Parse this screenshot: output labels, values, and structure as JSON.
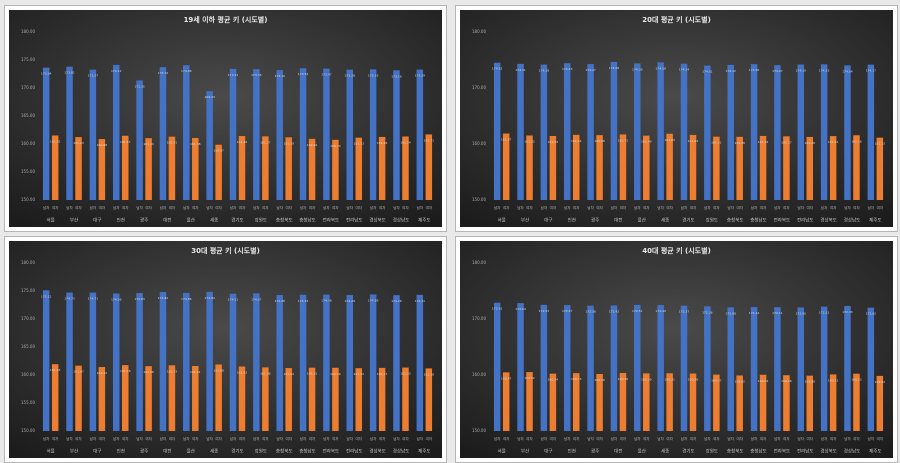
{
  "chart_data": [
    {
      "type": "bar",
      "title": "19세 이하 평균 키 (시도별)",
      "categories": [
        "서울",
        "부산",
        "대구",
        "인천",
        "광주",
        "대전",
        "울산",
        "세종",
        "경기도",
        "강원도",
        "충청북도",
        "충청남도",
        "전라북도",
        "전라남도",
        "경상북도",
        "경상남도",
        "제주도"
      ],
      "series": [
        {
          "name": "남자",
          "color": "#4472c4",
          "values": [
            173.64,
            173.81,
            173.27,
            174.12,
            171.35,
            173.72,
            174.08,
            169.43,
            173.41,
            173.36,
            173.19,
            173.54,
            173.47,
            173.28,
            173.33,
            173.16,
            173.29
          ]
        },
        {
          "name": "여자",
          "color": "#ed7d31",
          "values": [
            161.52,
            161.23,
            160.88,
            161.47,
            161.04,
            161.31,
            161.08,
            159.87,
            161.42,
            161.37,
            161.19,
            160.92,
            160.74,
            161.13,
            161.26,
            161.34,
            161.71
          ]
        }
      ],
      "ylim": [
        150,
        180
      ],
      "yticks": [
        {
          "value": 150,
          "label": "150.00"
        },
        {
          "value": 155,
          "label": "155.00"
        },
        {
          "value": 160,
          "label": "160.00"
        },
        {
          "value": 165,
          "label": "165.00"
        },
        {
          "value": 170,
          "label": "170.00"
        },
        {
          "value": 175,
          "label": "175.00"
        },
        {
          "value": 180,
          "label": "180.00"
        }
      ]
    },
    {
      "type": "bar",
      "title": "20대 평균 키 (시도별)",
      "categories": [
        "서울",
        "부산",
        "대구",
        "인천",
        "광주",
        "대전",
        "울산",
        "세종",
        "경기도",
        "강원도",
        "충청북도",
        "충청남도",
        "전라북도",
        "전라남도",
        "경상북도",
        "경상남도",
        "제주도"
      ],
      "series": [
        {
          "name": "남자",
          "color": "#4472c4",
          "values": [
            174.52,
            174.31,
            174.18,
            174.43,
            174.27,
            174.66,
            174.39,
            174.58,
            174.34,
            174.01,
            174.12,
            174.26,
            174.07,
            174.19,
            174.23,
            174.04,
            174.17
          ]
        },
        {
          "name": "여자",
          "color": "#ed7d31",
          "values": [
            161.87,
            161.52,
            161.43,
            161.64,
            161.58,
            161.71,
            161.49,
            161.83,
            161.62,
            161.31,
            161.28,
            161.44,
            161.37,
            161.26,
            161.41,
            161.56,
            161.13
          ]
        }
      ],
      "ylim": [
        150,
        180
      ],
      "yticks": [
        {
          "value": 150,
          "label": "150.00"
        },
        {
          "value": 160,
          "label": "160.00"
        },
        {
          "value": 170,
          "label": "170.00"
        },
        {
          "value": 180,
          "label": "180.00"
        }
      ]
    },
    {
      "type": "bar",
      "title": "30대 평균 키 (시도별)",
      "categories": [
        "서울",
        "부산",
        "대구",
        "인천",
        "광주",
        "대전",
        "울산",
        "세종",
        "경기도",
        "강원도",
        "충청북도",
        "충청남도",
        "전라북도",
        "전라남도",
        "경상북도",
        "경상남도",
        "제주도"
      ],
      "series": [
        {
          "name": "남자",
          "color": "#4472c4",
          "values": [
            175.12,
            174.73,
            174.71,
            174.56,
            174.63,
            174.82,
            174.66,
            174.84,
            174.51,
            174.57,
            174.28,
            174.33,
            174.36,
            174.29,
            174.38,
            174.26,
            174.31
          ]
        },
        {
          "name": "여자",
          "color": "#ed7d31",
          "values": [
            161.93,
            161.67,
            161.42,
            161.76,
            161.58,
            161.73,
            161.61,
            161.88,
            161.52,
            161.36,
            161.24,
            161.31,
            161.29,
            161.22,
            161.27,
            161.33,
            161.18
          ]
        }
      ],
      "ylim": [
        150,
        180
      ],
      "yticks": [
        {
          "value": 150,
          "label": "150.00"
        },
        {
          "value": 155,
          "label": "155.00"
        },
        {
          "value": 160,
          "label": "160.00"
        },
        {
          "value": 165,
          "label": "165.00"
        },
        {
          "value": 170,
          "label": "170.00"
        },
        {
          "value": 175,
          "label": "175.00"
        },
        {
          "value": 180,
          "label": "180.00"
        }
      ]
    },
    {
      "type": "bar",
      "title": "40대 평균 키 (시도별)",
      "categories": [
        "서울",
        "부산",
        "대구",
        "인천",
        "광주",
        "대전",
        "울산",
        "세종",
        "경기도",
        "강원도",
        "충청북도",
        "충청남도",
        "전라북도",
        "전라남도",
        "경상북도",
        "경상남도",
        "제주도"
      ],
      "series": [
        {
          "name": "남자",
          "color": "#4472c4",
          "values": [
            172.91,
            172.84,
            172.53,
            172.47,
            172.38,
            172.42,
            172.51,
            172.49,
            172.37,
            172.26,
            172.08,
            172.14,
            172.11,
            172.06,
            172.21,
            172.33,
            172.02
          ]
        },
        {
          "name": "여자",
          "color": "#ed7d31",
          "values": [
            160.47,
            160.52,
            160.24,
            160.33,
            160.18,
            160.36,
            160.29,
            160.31,
            160.26,
            160.07,
            159.92,
            160.04,
            159.96,
            159.88,
            160.11,
            160.23,
            159.84
          ]
        }
      ],
      "ylim": [
        150,
        180
      ],
      "yticks": [
        {
          "value": 150,
          "label": "150.00"
        },
        {
          "value": 160,
          "label": "160.00"
        },
        {
          "value": 170,
          "label": "170.00"
        },
        {
          "value": 180,
          "label": "180.00"
        }
      ]
    }
  ]
}
